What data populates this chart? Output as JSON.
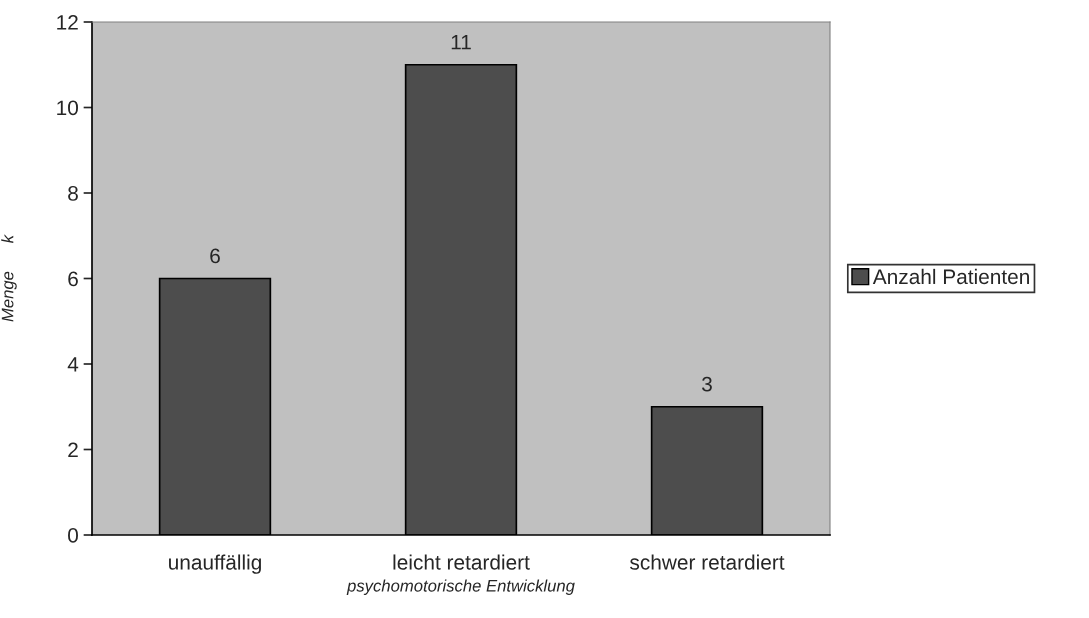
{
  "chart_data": {
    "type": "bar",
    "xlabel": "psychomotorische Entwicklung",
    "ylabel": "Menge      k",
    "categories": [
      "unauffällig",
      "leicht retardiert",
      "schwer retardiert"
    ],
    "series": [
      {
        "name": "Anzahl Patienten",
        "color": "#4d4d4d",
        "values": [
          6,
          11,
          3
        ]
      }
    ],
    "ylim": [
      0,
      12
    ],
    "yticks": [
      0,
      2,
      4,
      6,
      8,
      10,
      12
    ],
    "data_labels": true,
    "grid": false,
    "legend": "right"
  }
}
